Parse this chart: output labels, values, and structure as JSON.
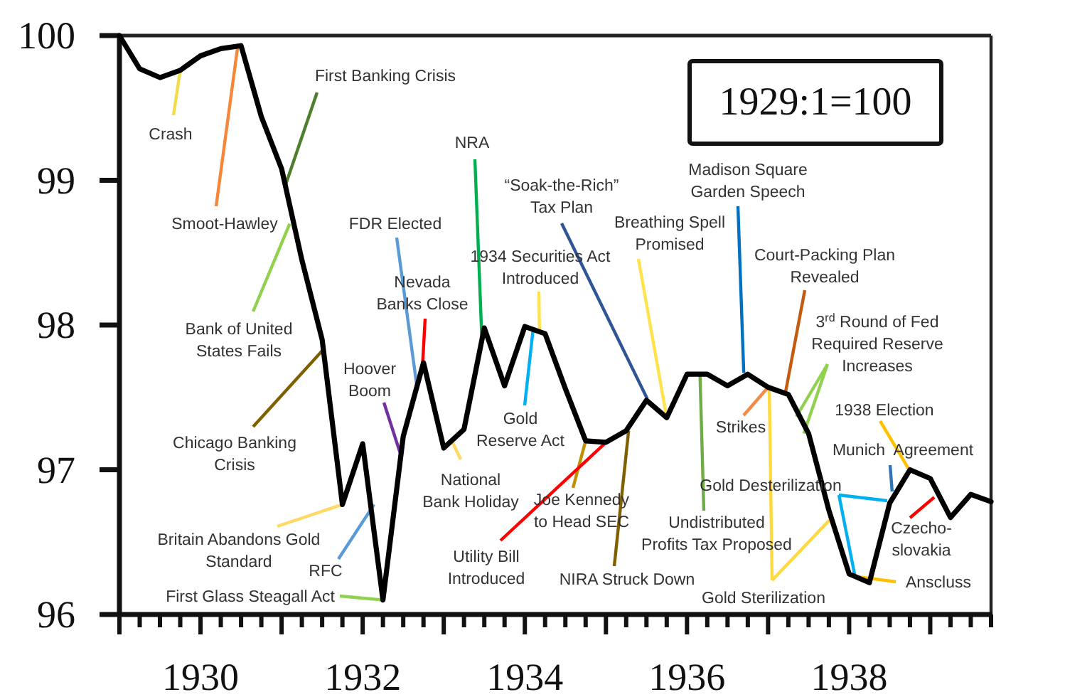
{
  "chart_data": {
    "type": "line",
    "x": [
      1929,
      1929.25,
      1929.5,
      1929.75,
      1930,
      1930.25,
      1930.5,
      1930.75,
      1931,
      1931.25,
      1931.5,
      1931.75,
      1932,
      1932.25,
      1932.5,
      1932.75,
      1933,
      1933.25,
      1933.5,
      1933.75,
      1934,
      1934.25,
      1934.5,
      1934.75,
      1935,
      1935.25,
      1935.5,
      1935.75,
      1936,
      1936.25,
      1936.5,
      1936.75,
      1937,
      1937.25,
      1937.5,
      1937.75,
      1938,
      1938.25,
      1938.5,
      1938.75,
      1939,
      1939.25,
      1939.5,
      1939.75
    ],
    "series": [
      {
        "color": "#000000",
        "values": [
          100,
          99.77,
          99.71,
          99.76,
          99.86,
          99.91,
          99.93,
          99.44,
          99.08,
          98.45,
          97.9,
          96.76,
          97.18,
          96.1,
          97.23,
          97.74,
          97.15,
          97.28,
          97.98,
          97.58,
          97.99,
          97.94,
          97.56,
          97.2,
          97.19,
          97.27,
          97.48,
          97.36,
          97.66,
          97.66,
          97.58,
          97.66,
          97.57,
          97.52,
          97.25,
          96.72,
          96.28,
          96.22,
          96.77,
          97.0,
          96.94,
          96.67,
          96.83,
          96.78
        ]
      }
    ],
    "xlim": [
      1929,
      1939.75
    ],
    "ylim": [
      96,
      100
    ],
    "xticks": [
      {
        "value": 1929,
        "label": null
      },
      {
        "value": 1929.25,
        "label": null
      },
      {
        "value": 1929.5,
        "label": null
      },
      {
        "value": 1929.75,
        "label": null
      },
      1930,
      {
        "value": 1930.25,
        "label": null
      },
      {
        "value": 1930.5,
        "label": null
      },
      {
        "value": 1930.75,
        "label": null
      },
      {
        "value": 1931,
        "label": null
      },
      {
        "value": 1931.25,
        "label": null
      },
      {
        "value": 1931.5,
        "label": null
      },
      {
        "value": 1931.75,
        "label": null
      },
      1932,
      {
        "value": 1932.25,
        "label": null
      },
      {
        "value": 1932.5,
        "label": null
      },
      {
        "value": 1932.75,
        "label": null
      },
      {
        "value": 1933,
        "label": null
      },
      {
        "value": 1933.25,
        "label": null
      },
      {
        "value": 1933.5,
        "label": null
      },
      {
        "value": 1933.75,
        "label": null
      },
      1934,
      {
        "value": 1934.25,
        "label": null
      },
      {
        "value": 1934.5,
        "label": null
      },
      {
        "value": 1934.75,
        "label": null
      },
      {
        "value": 1935,
        "label": null
      },
      {
        "value": 1935.25,
        "label": null
      },
      {
        "value": 1935.5,
        "label": null
      },
      {
        "value": 1935.75,
        "label": null
      },
      1936,
      {
        "value": 1936.25,
        "label": null
      },
      {
        "value": 1936.5,
        "label": null
      },
      {
        "value": 1936.75,
        "label": null
      },
      {
        "value": 1937,
        "label": null
      },
      {
        "value": 1937.25,
        "label": null
      },
      {
        "value": 1937.5,
        "label": null
      },
      {
        "value": 1937.75,
        "label": null
      },
      1938,
      {
        "value": 1938.25,
        "label": null
      },
      {
        "value": 1938.5,
        "label": null
      },
      {
        "value": 1938.75,
        "label": null
      },
      {
        "value": 1939,
        "label": null
      },
      {
        "value": 1939.25,
        "label": null
      },
      {
        "value": 1939.5,
        "label": null
      },
      {
        "value": 1939.75,
        "label": null
      }
    ],
    "yticks": [
      96,
      97,
      98,
      99,
      100
    ],
    "annotations": [
      {
        "text": "Crash",
        "x": 1929.75,
        "y": 99.76
      },
      {
        "text": "Smoot-Hawley",
        "x": 1930.46,
        "y": 99.93
      },
      {
        "text": "First Banking Crisis",
        "x": 1931.05,
        "y": 98.97
      },
      {
        "text": "Bank of United States Fails",
        "x": 1931.1,
        "y": 98.7
      },
      {
        "text": "Chicago Banking Crisis",
        "x": 1931.53,
        "y": 97.84
      },
      {
        "text": "Britain Abandons Gold Standard",
        "x": 1931.75,
        "y": 96.76
      },
      {
        "text": "RFC",
        "x": 1932.14,
        "y": 96.76
      },
      {
        "text": "First Glass Steagall Act",
        "x": 1932.25,
        "y": 96.1
      },
      {
        "text": "Hoover Boom",
        "x": 1932.46,
        "y": 97.12
      },
      {
        "text": "FDR Elected",
        "x": 1932.67,
        "y": 97.57
      },
      {
        "text": "Nevada Banks Close",
        "x": 1932.74,
        "y": 97.74
      },
      {
        "text": "NRA",
        "x": 1933.47,
        "y": 97.9
      },
      {
        "text": "National Bank Holiday",
        "x": 1933.1,
        "y": 97.2
      },
      {
        "text": "1934 Securities Act Introduced",
        "x": 1934.18,
        "y": 97.96
      },
      {
        "text": "Gold Reserve Act",
        "x": 1934.1,
        "y": 97.96
      },
      {
        "text": "“Soak-the-Rich” Tax Plan",
        "x": 1935.51,
        "y": 97.49
      },
      {
        "text": "Joe Kennedy to Head SEC",
        "x": 1934.75,
        "y": 97.2
      },
      {
        "text": "Utility Bill Introduced",
        "x": 1935.04,
        "y": 97.21
      },
      {
        "text": "NIRA Struck Down",
        "x": 1935.28,
        "y": 97.27
      },
      {
        "text": "Breathing Spell Promised",
        "x": 1935.75,
        "y": 97.36
      },
      {
        "text": "Madison Square Garden Speech",
        "x": 1936.7,
        "y": 97.67
      },
      {
        "text": "Undistributed Profits Tax Proposed",
        "x": 1936.16,
        "y": 97.67
      },
      {
        "text": "Court-Packing Plan Revealed",
        "x": 1937.21,
        "y": 97.52
      },
      {
        "text": "3$^{rd}$ Round of Fed Required Reserve Increases",
        "x": 1937.44,
        "y": 97.25
      },
      {
        "text": "Strikes",
        "x": 1937.0,
        "y": 97.57
      },
      {
        "text": "Gold Desterilization",
        "x": 1938.07,
        "y": 96.27
      },
      {
        "text": "Gold Sterilization",
        "x": 1937.77,
        "y": 96.66
      },
      {
        "text": "Anscluss",
        "x": 1938.12,
        "y": 96.26
      },
      {
        "text": "1938 Election",
        "x": 1938.74,
        "y": 97.0
      },
      {
        "text": "Munich  Agreement",
        "x": 1938.53,
        "y": 96.85
      },
      {
        "text": "Czecho-slovakia",
        "x": 1939.05,
        "y": 96.81
      },
      "1929:1=100"
    ]
  }
}
